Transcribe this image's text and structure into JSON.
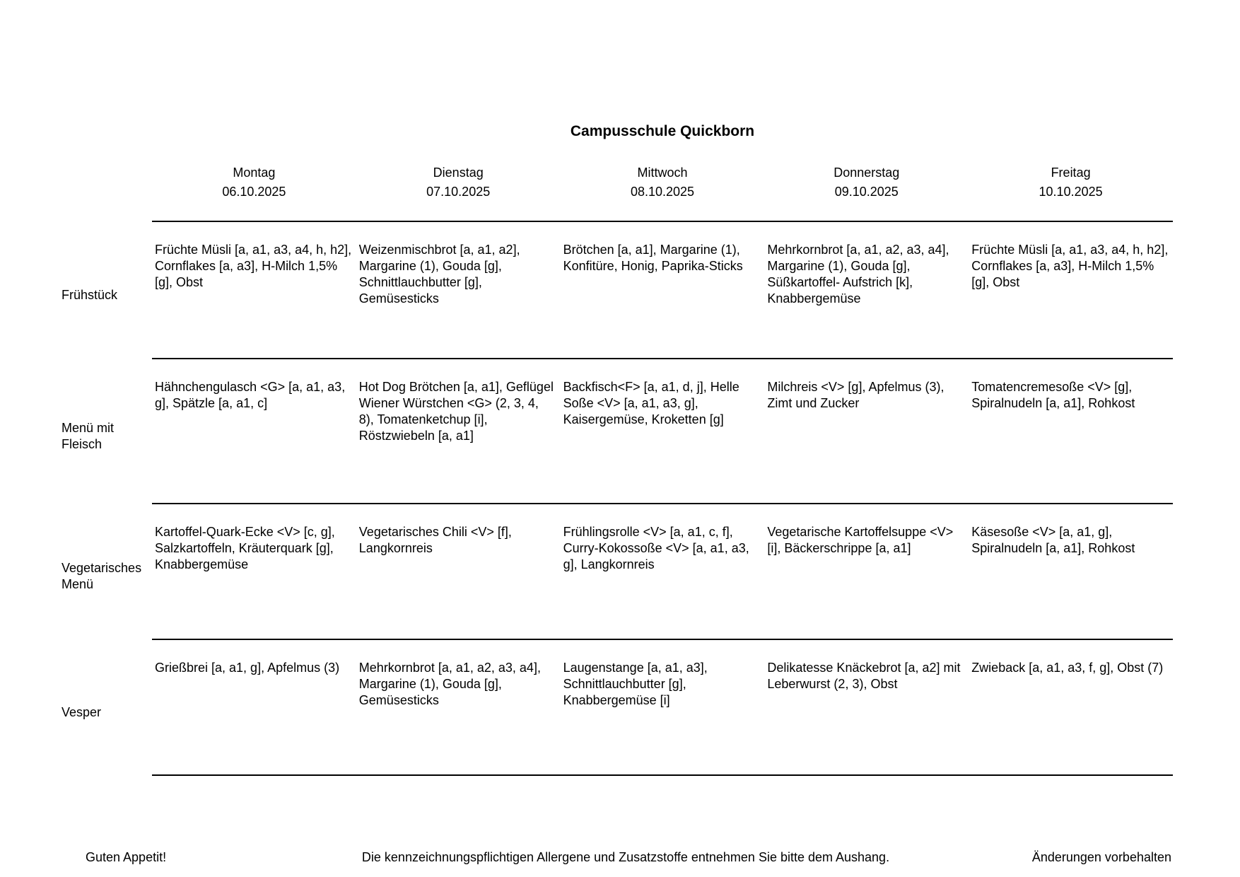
{
  "title": "Campusschule Quickborn",
  "days": [
    {
      "name": "Montag",
      "date": "06.10.2025"
    },
    {
      "name": "Dienstag",
      "date": "07.10.2025"
    },
    {
      "name": "Mittwoch",
      "date": "08.10.2025"
    },
    {
      "name": "Donnerstag",
      "date": "09.10.2025"
    },
    {
      "name": "Freitag",
      "date": "10.10.2025"
    }
  ],
  "rows": [
    {
      "label": "Frühstück",
      "items": [
        "Früchte Müsli [a, a1, a3, a4, h, h2], Cornflakes [a, a3], H-Milch 1,5% [g], Obst",
        "Weizenmischbrot [a, a1, a2], Margarine (1), Gouda [g], Schnittlauchbutter [g], Gemüsesticks",
        "Brötchen [a, a1], Margarine (1), Konfitüre, Honig, Paprika-Sticks",
        "Mehrkornbrot [a, a1, a2, a3, a4], Margarine (1), Gouda [g], Süßkartoffel- Aufstrich [k], Knabbergemüse",
        "Früchte Müsli [a, a1, a3, a4, h, h2], Cornflakes [a, a3], H-Milch 1,5% [g], Obst"
      ]
    },
    {
      "label": "Menü mit Fleisch",
      "items": [
        "Hähnchengulasch <G> [a, a1, a3, g], Spätzle [a, a1, c]",
        "Hot Dog Brötchen [a, a1], Geflügel Wiener Würstchen <G> (2, 3, 4, 8), Tomatenketchup [i], Röstzwiebeln [a, a1]",
        "Backfisch<F> [a, a1, d, j], Helle Soße <V> [a, a1, a3, g], Kaisergemüse, Kroketten [g]",
        "Milchreis <V> [g], Apfelmus (3), Zimt und Zucker",
        "Tomatencremesoße <V> [g], Spiralnudeln [a, a1], Rohkost"
      ]
    },
    {
      "label": "Vegetarisches Menü",
      "items": [
        "Kartoffel-Quark-Ecke <V> [c, g], Salzkartoffeln, Kräuterquark [g], Knabbergemüse",
        "Vegetarisches Chili <V> [f], Langkornreis",
        "Frühlingsrolle <V> [a, a1, c, f], Curry-Kokossoße <V> [a, a1, a3, g], Langkornreis",
        "Vegetarische Kartoffelsuppe <V> [i], Bäckerschrippe [a, a1]",
        "Käsesoße <V> [a, a1, g], Spiralnudeln [a, a1], Rohkost"
      ]
    },
    {
      "label": "Vesper",
      "items": [
        "Grießbrei [a, a1, g], Apfelmus (3)",
        "Mehrkornbrot [a, a1, a2, a3, a4], Margarine (1), Gouda [g], Gemüsesticks",
        "Laugenstange [a, a1, a3], Schnittlauchbutter [g], Knabbergemüse [i]",
        "Delikatesse Knäckebrot [a, a2] mit Leberwurst (2, 3), Obst",
        "Zwieback [a, a1, a3, f, g], Obst (7)"
      ]
    }
  ],
  "footer": {
    "left": "Guten Appetit!",
    "center": "Die kennzeichnungspflichtigen Allergene und Zusatzstoffe entnehmen Sie bitte dem Aushang.",
    "right": "Änderungen vorbehalten"
  }
}
